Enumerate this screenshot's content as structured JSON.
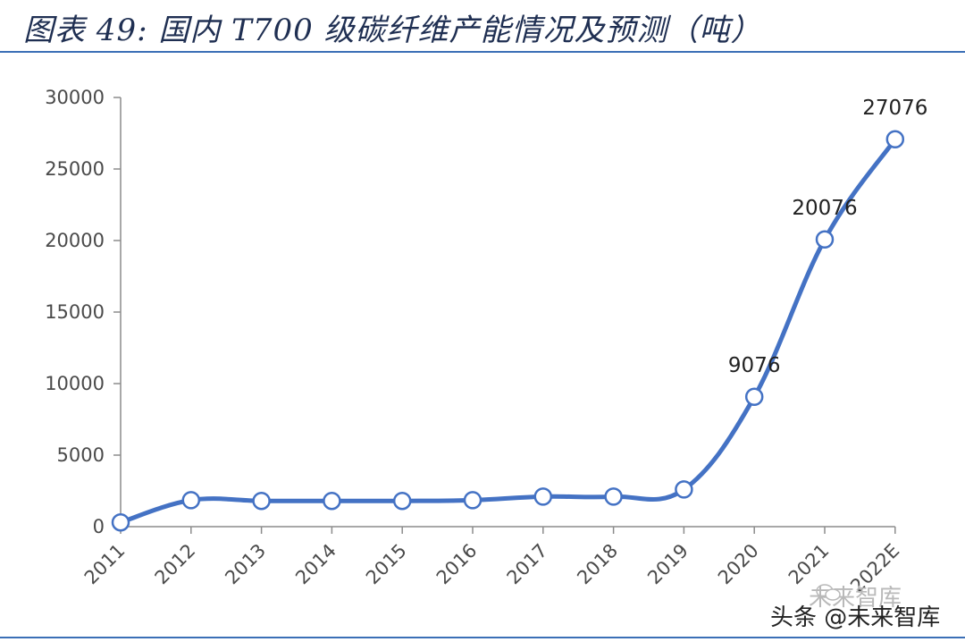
{
  "header": {
    "title": "图表 49: 国内 T700 级碳纤维产能情况及预测（吨）"
  },
  "watermark": {
    "text": "头条 @未来智库",
    "ghost": "未来智库",
    "logo_icon": "wechat-logo-icon"
  },
  "colors": {
    "line": "#4472c4",
    "axis": "#8c8c8c",
    "rule": "#3b6fb6"
  },
  "chart_data": {
    "type": "line",
    "title": "",
    "xlabel": "",
    "ylabel": "",
    "ylim": [
      0,
      30000
    ],
    "yticks": [
      "0",
      "5000",
      "10000",
      "15000",
      "20000",
      "25000",
      "30000"
    ],
    "categories": [
      "2011",
      "2012",
      "2013",
      "2014",
      "2015",
      "2016",
      "2017",
      "2018",
      "2019",
      "2020",
      "2021",
      "2022E"
    ],
    "series": [
      {
        "values": [
          300,
          1850,
          1800,
          1800,
          1800,
          1850,
          2100,
          2100,
          2600,
          9076,
          20076,
          27076
        ],
        "data_labels": [
          "",
          "",
          "",
          "",
          "",
          "",
          "",
          "",
          "",
          "9076",
          "20076",
          "27076"
        ]
      }
    ],
    "grid": false,
    "legend": "none",
    "smooth": true,
    "markers": "hollow-circle"
  }
}
